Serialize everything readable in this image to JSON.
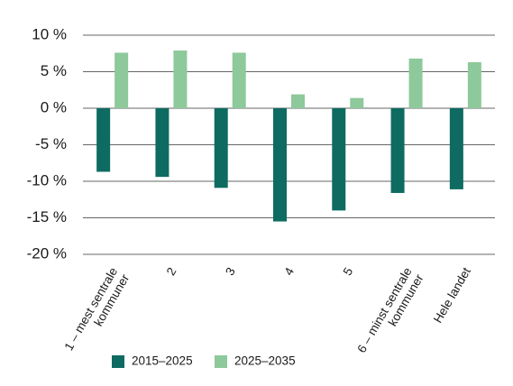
{
  "chart_data": {
    "type": "bar",
    "categories": [
      [
        "1 – mest sentrale",
        "kommuner"
      ],
      [
        "2"
      ],
      [
        "3"
      ],
      [
        "4"
      ],
      [
        "5"
      ],
      [
        "6 – minst sentrale",
        "kommuner"
      ],
      [
        "Hele landet"
      ]
    ],
    "series": [
      {
        "name": "2015–2025",
        "color": "#0e6b61",
        "values": [
          -8.7,
          -9.4,
          -10.9,
          -15.5,
          -14.0,
          -11.6,
          -11.1
        ]
      },
      {
        "name": "2025–2035",
        "color": "#8dc99a",
        "values": [
          7.6,
          7.9,
          7.6,
          1.9,
          1.4,
          6.8,
          6.3
        ]
      }
    ],
    "yticks": [
      10,
      5,
      0,
      -5,
      -10,
      -15,
      -20
    ],
    "ytick_suffix": " %",
    "ylim": [
      -20,
      10
    ],
    "grid": true,
    "legend": "bottom"
  }
}
